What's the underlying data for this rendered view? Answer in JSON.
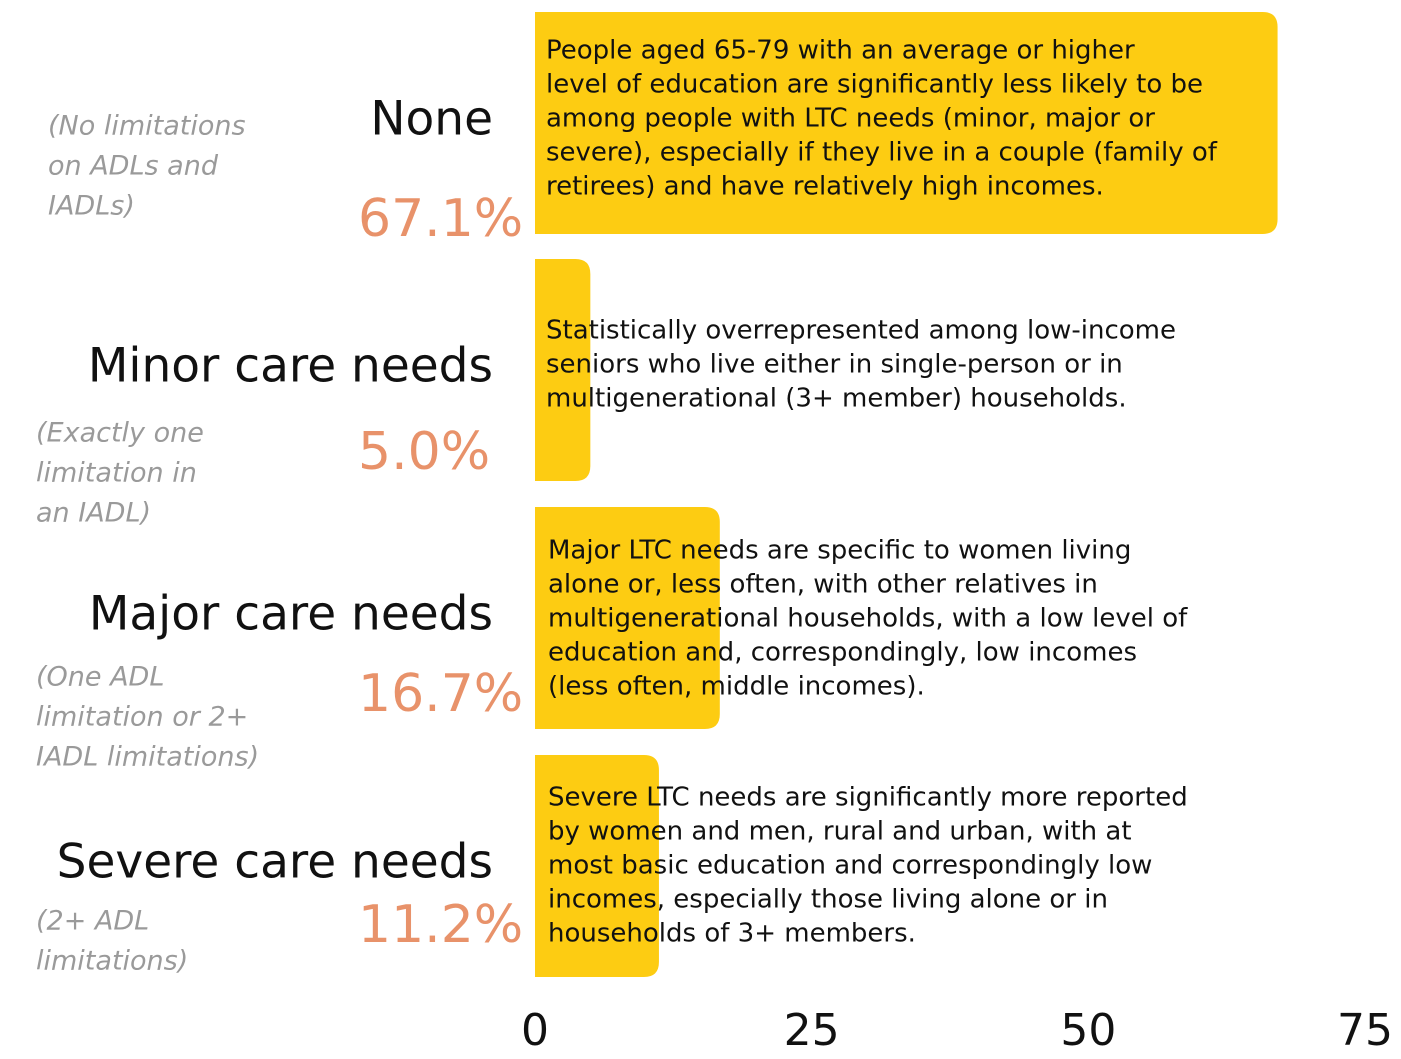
{
  "chart_data": {
    "type": "barh",
    "categories": [
      "None",
      "Minor care needs",
      "Major care needs",
      "Severe care needs"
    ],
    "sublabels": [
      [
        "(No limitations",
        "on ADLs and",
        "IADLs)"
      ],
      [
        "(Exactly one",
        "limitation in",
        "an IADL)"
      ],
      [
        "(One ADL",
        "limitation or 2+",
        "IADL limitations)"
      ],
      [
        "(2+ ADL",
        "limitations)"
      ]
    ],
    "values": [
      67.1,
      5.0,
      16.7,
      11.2
    ],
    "value_labels": [
      "67.1%",
      "5.0%",
      "16.7%",
      "11.2%"
    ],
    "annotations": [
      [
        "People aged 65-79 with an average or higher",
        "level of education are significantly less likely to be",
        "among people with LTC needs (minor, major or",
        "severe), especially if they live in a couple (family of",
        "retirees) and have relatively high incomes."
      ],
      [
        "Statistically overrepresented among low-income",
        "seniors who live either in single-person or in",
        "multigenerational (3+ member) households."
      ],
      [
        "Major LTC needs are specific to women living",
        "alone or, less often, with other relatives in",
        "multigenerational households, with a low level of",
        "education and, correspondingly, low incomes",
        "(less often, middle incomes)."
      ],
      [
        "Severe LTC needs are significantly more reported",
        "by women and men, rural and urban, with at",
        "most basic education and correspondingly low",
        "incomes, especially those living alone or in",
        "households of 3+ members."
      ]
    ],
    "color": "#fdcc12",
    "value_label_color": "#e8926a",
    "xlim": [
      0,
      75
    ],
    "xticks": [
      0,
      25,
      50,
      75
    ],
    "grid": false
  }
}
